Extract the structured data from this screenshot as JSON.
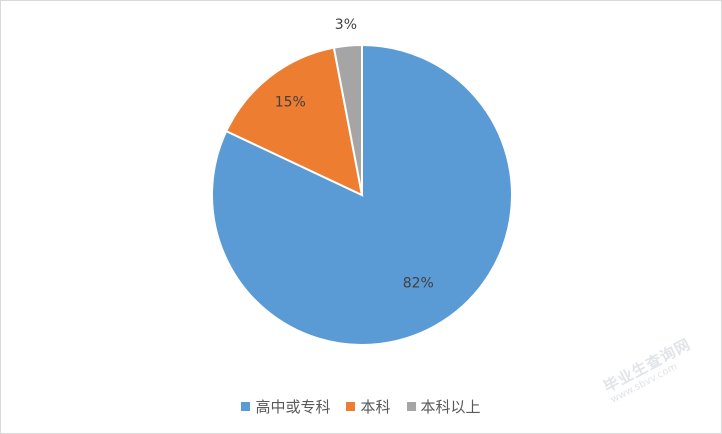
{
  "chart_data": {
    "type": "pie",
    "slices": [
      {
        "label": "高中或专科",
        "value": 82,
        "display": "82%",
        "color": "#5b9bd5"
      },
      {
        "label": "本科",
        "value": 15,
        "display": "15%",
        "color": "#ed7d31"
      },
      {
        "label": "本科以上",
        "value": 3,
        "display": "3%",
        "color": "#a5a5a5"
      }
    ],
    "legend_position": "bottom",
    "start_angle": "12 o'clock, clockwise"
  },
  "watermark": {
    "main": "毕业生查询网",
    "sub": "www.sbvv.com"
  }
}
